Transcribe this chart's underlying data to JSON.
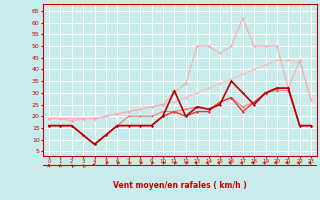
{
  "background_color": "#c8ecec",
  "grid_color": "#ffffff",
  "xlabel": "Vent moyen/en rafales ( km/h )",
  "x_values": [
    0,
    1,
    2,
    3,
    4,
    5,
    6,
    7,
    8,
    9,
    10,
    11,
    12,
    13,
    14,
    15,
    16,
    17,
    18,
    19,
    20,
    21,
    22,
    23
  ],
  "ylim": [
    3,
    68
  ],
  "yticks": [
    5,
    10,
    15,
    20,
    25,
    30,
    35,
    40,
    45,
    50,
    55,
    60,
    65
  ],
  "text_color": "#cc0000",
  "series": [
    {
      "color": "#ffbbbb",
      "linewidth": 0.8,
      "marker": "D",
      "markersize": 1.5,
      "values": [
        19,
        19,
        19,
        19,
        19,
        20,
        21,
        22,
        23,
        24,
        25,
        26,
        28,
        30,
        32,
        34,
        36,
        38,
        40,
        42,
        44,
        44,
        43,
        27
      ]
    },
    {
      "color": "#ffaaaa",
      "linewidth": 0.8,
      "marker": "D",
      "markersize": 1.5,
      "values": [
        19,
        19,
        18,
        19,
        19,
        20,
        21,
        22,
        23,
        24,
        25,
        30,
        34,
        50,
        50,
        47,
        50,
        62,
        50,
        50,
        50,
        32,
        44,
        27
      ]
    },
    {
      "color": "#ff7777",
      "linewidth": 0.8,
      "marker": "D",
      "markersize": 1.5,
      "values": [
        16,
        16,
        16,
        12,
        8,
        12,
        16,
        20,
        20,
        20,
        22,
        22,
        23,
        24,
        23,
        26,
        28,
        24,
        26,
        30,
        31,
        31,
        16,
        16
      ]
    },
    {
      "color": "#ee3333",
      "linewidth": 1.0,
      "marker": "D",
      "markersize": 1.5,
      "values": [
        16,
        16,
        16,
        12,
        8,
        12,
        16,
        16,
        16,
        16,
        20,
        22,
        20,
        22,
        22,
        26,
        28,
        22,
        26,
        30,
        32,
        32,
        16,
        16
      ]
    },
    {
      "color": "#bb0000",
      "linewidth": 1.2,
      "marker": "D",
      "markersize": 1.5,
      "values": [
        16,
        16,
        16,
        12,
        8,
        12,
        16,
        16,
        16,
        16,
        20,
        31,
        20,
        24,
        23,
        25,
        35,
        30,
        25,
        30,
        32,
        32,
        16,
        16
      ]
    }
  ],
  "arrow_angles": [
    180,
    180,
    225,
    225,
    270,
    315,
    315,
    315,
    315,
    315,
    315,
    315,
    315,
    45,
    45,
    45,
    45,
    45,
    45,
    45,
    45,
    45,
    45,
    45
  ]
}
